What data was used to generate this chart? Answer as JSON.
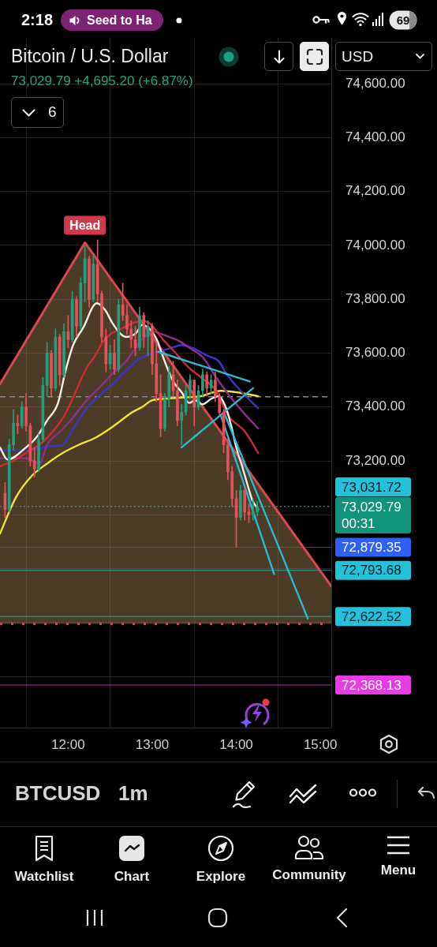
{
  "chart_data": {
    "type": "candlestick",
    "title": "Bitcoin / U.S. Dollar",
    "subtitle": "73,029.79 +4,695.20 (+6.87%)",
    "x": [
      11.25,
      11.3,
      11.35,
      11.4,
      11.45,
      11.5,
      11.55,
      11.6,
      11.65,
      11.7,
      11.75,
      11.8,
      11.85,
      11.9,
      11.95,
      12,
      12.05,
      12.1,
      12.15,
      12.2,
      12.25,
      12.3,
      12.35,
      12.4,
      12.45,
      12.5,
      12.55,
      12.6,
      12.65,
      12.7,
      12.75,
      12.8,
      12.85,
      12.9,
      12.95,
      13,
      13.05,
      13.1,
      13.15,
      13.2,
      13.25,
      13.3,
      13.35,
      13.4,
      13.45,
      13.5,
      13.55,
      13.6,
      13.65,
      13.7,
      13.75,
      13.8,
      13.85,
      13.9,
      13.95,
      14,
      14.05,
      14.1,
      14.15,
      14.2,
      14.25
    ],
    "ohlc": [
      [
        73080,
        73120,
        72990,
        73020
      ],
      [
        73020,
        73280,
        73010,
        73260
      ],
      [
        73260,
        73390,
        73240,
        73340
      ],
      [
        73340,
        73370,
        73300,
        73330
      ],
      [
        73330,
        73420,
        73320,
        73400
      ],
      [
        73400,
        73450,
        73310,
        73330
      ],
      [
        73330,
        73340,
        73180,
        73200
      ],
      [
        73200,
        73250,
        73140,
        73170
      ],
      [
        73170,
        73300,
        73160,
        73280
      ],
      [
        73280,
        73510,
        73270,
        73480
      ],
      [
        73480,
        73640,
        73440,
        73600
      ],
      [
        73600,
        73610,
        73440,
        73470
      ],
      [
        73470,
        73690,
        73460,
        73660
      ],
      [
        73660,
        73670,
        73480,
        73520
      ],
      [
        73520,
        73710,
        73510,
        73680
      ],
      [
        73680,
        73740,
        73620,
        73650
      ],
      [
        73650,
        73830,
        73640,
        73800
      ],
      [
        73800,
        73810,
        73660,
        73700
      ],
      [
        73700,
        73880,
        73690,
        73860
      ],
      [
        73860,
        74000,
        73790,
        73950
      ],
      [
        73950,
        73960,
        73770,
        73800
      ],
      [
        73800,
        73960,
        73790,
        73930
      ],
      [
        73930,
        74020,
        73790,
        73820
      ],
      [
        73820,
        73830,
        73640,
        73660
      ],
      [
        73660,
        73690,
        73530,
        73560
      ],
      [
        73560,
        73630,
        73540,
        73600
      ],
      [
        73600,
        73650,
        73520,
        73540
      ],
      [
        73540,
        73800,
        73530,
        73780
      ],
      [
        73780,
        73860,
        73720,
        73740
      ],
      [
        73740,
        73780,
        73670,
        73690
      ],
      [
        73690,
        73720,
        73620,
        73650
      ],
      [
        73650,
        73700,
        73590,
        73620
      ],
      [
        73620,
        73770,
        73610,
        73740
      ],
      [
        73740,
        73750,
        73620,
        73660
      ],
      [
        73660,
        73720,
        73590,
        73700
      ],
      [
        73700,
        73710,
        73520,
        73560
      ],
      [
        73560,
        73640,
        73420,
        73450
      ],
      [
        73450,
        73520,
        73290,
        73320
      ],
      [
        73320,
        73450,
        73310,
        73430
      ],
      [
        73430,
        73550,
        73400,
        73520
      ],
      [
        73520,
        73570,
        73440,
        73460
      ],
      [
        73460,
        73500,
        73330,
        73350
      ],
      [
        73350,
        73410,
        73260,
        73380
      ],
      [
        73380,
        73480,
        73370,
        73460
      ],
      [
        73460,
        73520,
        73430,
        73500
      ],
      [
        73500,
        73500,
        73330,
        73400
      ],
      [
        73400,
        73480,
        73390,
        73460
      ],
      [
        73460,
        73540,
        73440,
        73520
      ],
      [
        73520,
        73530,
        73440,
        73470
      ],
      [
        73470,
        73520,
        73450,
        73500
      ],
      [
        73500,
        73530,
        73420,
        73440
      ],
      [
        73440,
        73450,
        73370,
        73380
      ],
      [
        73380,
        73390,
        73230,
        73260
      ],
      [
        73260,
        73280,
        73130,
        73160
      ],
      [
        73160,
        73180,
        73030,
        73060
      ],
      [
        73060,
        73090,
        72880,
        72990
      ],
      [
        72990,
        73110,
        72980,
        73090
      ],
      [
        73090,
        73100,
        72980,
        73010
      ],
      [
        73010,
        73040,
        72970,
        73000
      ],
      [
        73000,
        73060,
        72980,
        73010
      ],
      [
        73010,
        73050,
        72995,
        73030
      ]
    ],
    "colors": [
      "#e9505b",
      "#22a07e",
      "#22a07e",
      "#e9505b",
      "#22a07e",
      "#e9505b",
      "#e9505b",
      "#e9505b",
      "#22a07e",
      "#22a07e",
      "#22a07e",
      "#e9505b",
      "#22a07e",
      "#e9505b",
      "#22a07e",
      "#e9505b",
      "#22a07e",
      "#e9505b",
      "#22a07e",
      "#22a07e",
      "#e9505b",
      "#22a07e",
      "#e9505b",
      "#e9505b",
      "#e9505b",
      "#22a07e",
      "#e9505b",
      "#22a07e",
      "#e9505b",
      "#e9505b",
      "#e9505b",
      "#e9505b",
      "#22a07e",
      "#e9505b",
      "#22a07e",
      "#e9505b",
      "#e9505b",
      "#e9505b",
      "#22a07e",
      "#22a07e",
      "#e9505b",
      "#e9505b",
      "#22a07e",
      "#22a07e",
      "#22a07e",
      "#e9505b",
      "#22a07e",
      "#22a07e",
      "#e9505b",
      "#22a07e",
      "#e9505b",
      "#e9505b",
      "#e9505b",
      "#e9505b",
      "#e9505b",
      "#e9505b",
      "#22a07e",
      "#e9505b",
      "#e9505b",
      "#22a07e",
      "#22a07e"
    ],
    "series": [
      {
        "type": "line",
        "color": "#d9474f",
        "x": [
          11.19,
          12.2,
          15.13
        ],
        "values": [
          73485,
          74010,
          72735
        ],
        "lower": [
          72595,
          72595,
          72595
        ],
        "upper": [
          73485,
          74010,
          72735
        ]
      },
      {
        "type": "line",
        "color": "#f2e52b",
        "x": [
          11.19,
          11.38,
          11.57,
          11.75,
          11.94,
          12.13,
          12.32,
          12.5,
          12.63,
          12.76,
          12.88,
          13,
          13.13,
          13.35,
          13.57,
          13.82,
          14,
          14.26
        ],
        "values": [
          72930,
          73065,
          73145,
          73190,
          73230,
          73260,
          73285,
          73320,
          73350,
          73380,
          73400,
          73425,
          73430,
          73435,
          73440,
          73460,
          73455,
          73440
        ]
      },
      {
        "type": "line",
        "color": "#3b34c9",
        "x": [
          11.19,
          11.5,
          11.82,
          11.94,
          12.06,
          12.22,
          12.38,
          12.53,
          12.69,
          12.85,
          12.97,
          13.07,
          13.23,
          13.35,
          13.51,
          13.66,
          13.79,
          13.88,
          13.98,
          14.13,
          14.26
        ],
        "values": [
          73240,
          73240,
          73255,
          73260,
          73320,
          73395,
          73445,
          73485,
          73535,
          73580,
          73595,
          73605,
          73620,
          73630,
          73615,
          73590,
          73570,
          73525,
          73485,
          73435,
          73395
        ]
      },
      {
        "type": "line",
        "color": "#8e2f8e",
        "x": [
          11.19,
          11.5,
          11.66,
          11.75,
          11.91,
          12.03,
          12.22,
          12.38,
          12.53,
          12.69,
          12.85,
          13,
          13.16,
          13.32,
          13.44,
          13.6,
          13.75,
          13.91,
          14.07,
          14.26
        ],
        "values": [
          73210,
          73210,
          73190,
          73260,
          73310,
          73350,
          73425,
          73475,
          73525,
          73570,
          73640,
          73680,
          73665,
          73645,
          73620,
          73585,
          73515,
          73445,
          73385,
          73320
        ]
      },
      {
        "type": "line",
        "color": "#d02a33",
        "x": [
          11.19,
          11.38,
          11.5,
          11.66,
          11.82,
          11.94,
          12.03,
          12.13,
          12.22,
          12.32,
          12.41,
          12.5,
          12.63,
          12.76,
          12.88,
          12.97,
          13.13,
          13.28,
          13.44,
          13.6,
          13.75,
          13.91,
          14.1,
          14.26
        ],
        "values": [
          73180,
          73205,
          73230,
          73260,
          73310,
          73360,
          73415,
          73485,
          73545,
          73590,
          73640,
          73670,
          73690,
          73710,
          73720,
          73710,
          73650,
          73600,
          73545,
          73505,
          73465,
          73365,
          73310,
          73230
        ]
      },
      {
        "type": "line",
        "color": "#f4efe2",
        "x": [
          11.19,
          11.28,
          11.5,
          11.63,
          11.75,
          11.88,
          11.97,
          12.06,
          12.19,
          12.29,
          12.34,
          12.44,
          12.53,
          12.63,
          12.69,
          12.81,
          12.88,
          12.97,
          13.07,
          13.09,
          13.25,
          13.35,
          13.44,
          13.51,
          13.6,
          13.7,
          13.79,
          13.88,
          13.94,
          14,
          14.07,
          14.13,
          14.19,
          14.26
        ],
        "values": [
          73250,
          73205,
          73250,
          73290,
          73350,
          73415,
          73535,
          73630,
          73700,
          73770,
          73785,
          73760,
          73710,
          73670,
          73660,
          73675,
          73705,
          73690,
          73640,
          73620,
          73495,
          73455,
          73415,
          73425,
          73410,
          73430,
          73440,
          73395,
          73330,
          73250,
          73180,
          73115,
          73055,
          73020
        ]
      },
      {
        "type": "line",
        "color": "#2bbad3",
        "x": [
          13.07,
          14.16
        ],
        "values": [
          73605,
          73495
        ]
      },
      {
        "type": "line",
        "color": "#2bbad3",
        "x": [
          13.35,
          14.2
        ],
        "values": [
          73250,
          73470
        ]
      },
      {
        "type": "line",
        "color": "#2bbad3",
        "x": [
          13.82,
          14.45
        ],
        "values": [
          73365,
          72780
        ]
      },
      {
        "type": "line",
        "color": "#2bbad3",
        "x": [
          13.86,
          14.85
        ],
        "values": [
          73375,
          72615
        ]
      }
    ],
    "xlim": [
      11.19,
      15.13
    ],
    "xticks": [
      {
        "value": 12,
        "label": "12:00"
      },
      {
        "value": 13,
        "label": "13:00"
      },
      {
        "value": 14,
        "label": "14:00"
      },
      {
        "value": 15,
        "label": "15:00"
      }
    ],
    "ylim": [
      72210,
      74770
    ],
    "yticks": [
      {
        "value": 72400,
        "label": null
      },
      {
        "value": 72600,
        "label": null
      },
      {
        "value": 72800,
        "label": null
      },
      {
        "value": 73000,
        "label": null
      },
      {
        "value": 73200,
        "label": "73,200.00"
      },
      {
        "value": 73400,
        "label": "73,400.00"
      },
      {
        "value": 73600,
        "label": "73,600.00"
      },
      {
        "value": 73800,
        "label": "73,800.00"
      },
      {
        "value": 74000,
        "label": "74,000.00"
      },
      {
        "value": 74200,
        "label": "74,200.00"
      },
      {
        "value": 74400,
        "label": "74,400.00"
      },
      {
        "value": 74600,
        "label": "74,600.00"
      }
    ],
    "grid": true,
    "ref_lines": [
      {
        "axis": "y",
        "value": 73438,
        "color": "#8a8a8a",
        "line_style": "dashed"
      },
      {
        "axis": "y",
        "value": 73031.72,
        "label": "73,031.72",
        "color": "#22c3da",
        "line_style": "dotted"
      },
      {
        "axis": "y",
        "value": 73029.79,
        "label": "73,029.79\n00:31",
        "color": "#10937a",
        "line_style": "dotted"
      },
      {
        "axis": "y",
        "value": 72879.35,
        "label": "72,879.35",
        "color": "#2f5ff5"
      },
      {
        "axis": "y",
        "value": 72793.68,
        "label": "72,793.68",
        "color": "#22c3da"
      },
      {
        "axis": "y",
        "value": 72622.52,
        "label": "72,622.52",
        "color": "#22c3da"
      },
      {
        "axis": "y",
        "value": 72595,
        "color": "#e0424c",
        "line_style": "dotted"
      },
      {
        "axis": "y",
        "value": 72368.13,
        "label": "72,368.13",
        "color": "#e83be6"
      }
    ],
    "annotations": [
      {
        "text": "Head",
        "x": 12.2,
        "y": 74010
      },
      "2:18",
      "Seed to Ha",
      "69",
      "USD",
      "6",
      "BTCUSD",
      "1m",
      "Watchlist",
      "Chart",
      "Explore",
      "Community",
      "Menu"
    ]
  }
}
